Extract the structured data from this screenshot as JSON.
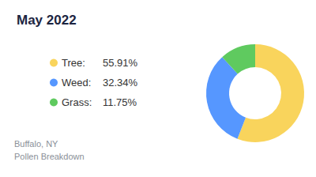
{
  "chart_data": {
    "type": "pie",
    "title": "May 2022",
    "annotations": [
      "Buffalo, NY",
      "Pollen Breakdown"
    ],
    "categories": [
      "Tree:",
      "Weed:",
      "Grass:"
    ],
    "values": [
      55.91,
      32.34,
      11.75
    ],
    "value_labels": [
      "55.91%",
      "32.34%",
      "11.75%"
    ],
    "colors": [
      "#f9d45c",
      "#5697ff",
      "#5fca5f"
    ],
    "legend": "left"
  }
}
